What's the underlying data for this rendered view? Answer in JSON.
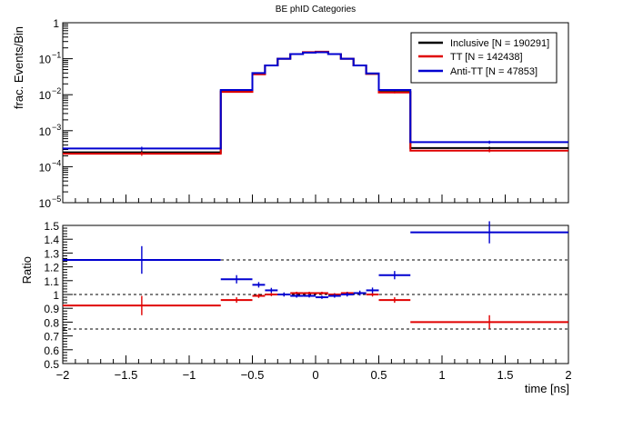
{
  "chart_data": {
    "type": "line",
    "title": "BE phID Categories",
    "x_edges": [
      -2,
      -0.75,
      -0.5,
      -0.4,
      -0.3,
      -0.2,
      -0.1,
      0,
      0.1,
      0.2,
      0.3,
      0.4,
      0.5,
      0.75,
      2
    ],
    "xlabel": "time [ns]",
    "xlim": [
      -2,
      2
    ],
    "x_ticks": [
      -2,
      -1.5,
      -1,
      -0.5,
      0,
      0.5,
      1,
      1.5,
      2
    ],
    "x_tick_labels": [
      "−2",
      "−1.5",
      "−1",
      "−0.5",
      "0",
      "0.5",
      "1",
      "1.5",
      "2"
    ],
    "top_panel": {
      "ylabel": "frac. Events/Bin",
      "yscale": "log",
      "ylim": [
        1e-05,
        1
      ],
      "y_ticks": [
        1e-05,
        0.0001,
        0.001,
        0.01,
        0.1,
        1
      ],
      "y_tick_labels": [
        {
          "base": "10",
          "exp": "−5"
        },
        {
          "base": "10",
          "exp": "−4"
        },
        {
          "base": "10",
          "exp": "−3"
        },
        {
          "base": "10",
          "exp": "−2"
        },
        {
          "base": "10",
          "exp": "−1"
        },
        {
          "base": "1",
          "exp": ""
        }
      ],
      "legend_position": "top-right",
      "series": [
        {
          "name": "Inclusive [N = 190291]",
          "color": "#000000",
          "values": [
            0.00025,
            0.0125,
            0.038,
            0.065,
            0.1,
            0.135,
            0.15,
            0.155,
            0.135,
            0.1,
            0.065,
            0.038,
            0.012,
            0.00033
          ],
          "errors": [
            3e-05,
            0.0006,
            0.001,
            0.0015,
            0.002,
            0.0025,
            0.003,
            0.003,
            0.0025,
            0.002,
            0.0015,
            0.001,
            0.0006,
            3e-05
          ]
        },
        {
          "name": "TT [N = 142438]",
          "color": "#e00000",
          "values": [
            0.00023,
            0.012,
            0.037,
            0.065,
            0.1,
            0.135,
            0.152,
            0.157,
            0.135,
            0.1,
            0.065,
            0.038,
            0.0115,
            0.00028
          ],
          "errors": [
            3e-05,
            0.0006,
            0.001,
            0.0015,
            0.002,
            0.0025,
            0.003,
            0.003,
            0.0025,
            0.002,
            0.0015,
            0.001,
            0.0006,
            3e-05
          ]
        },
        {
          "name": "Anti-TT [N = 47853]",
          "color": "#0000d0",
          "values": [
            0.00032,
            0.0135,
            0.04,
            0.065,
            0.1,
            0.135,
            0.148,
            0.151,
            0.135,
            0.1,
            0.065,
            0.039,
            0.0135,
            0.00048
          ],
          "errors": [
            4e-05,
            0.0008,
            0.0012,
            0.0018,
            0.0025,
            0.003,
            0.0035,
            0.0035,
            0.003,
            0.0025,
            0.0018,
            0.0012,
            0.0008,
            5e-05
          ]
        }
      ]
    },
    "bottom_panel": {
      "ylabel": "Ratio",
      "ylim": [
        0.5,
        1.5
      ],
      "y_ticks": [
        0.5,
        0.6,
        0.7,
        0.8,
        0.9,
        1,
        1.1,
        1.2,
        1.3,
        1.4,
        1.5
      ],
      "y_tick_labels": [
        "0.5",
        "0.6",
        "0.7",
        "0.8",
        "0.9",
        "1",
        "1.1",
        "1.2",
        "1.3",
        "1.4",
        "1.5"
      ],
      "reference_lines": [
        0.75,
        1,
        1.25
      ],
      "series": [
        {
          "name": "TT",
          "color": "#e00000",
          "values": [
            0.92,
            0.96,
            0.99,
            1.0,
            1.0,
            1.01,
            1.01,
            1.01,
            1.0,
            1.01,
            1.01,
            1.0,
            0.96,
            0.8
          ],
          "errors": [
            0.07,
            0.02,
            0.015,
            0.012,
            0.01,
            0.01,
            0.01,
            0.01,
            0.01,
            0.01,
            0.012,
            0.015,
            0.02,
            0.05
          ]
        },
        {
          "name": "Anti-TT",
          "color": "#0000d0",
          "values": [
            1.25,
            1.11,
            1.07,
            1.03,
            1.0,
            0.99,
            0.99,
            0.98,
            0.99,
            1.0,
            1.01,
            1.03,
            1.14,
            1.45
          ],
          "errors": [
            0.1,
            0.03,
            0.02,
            0.018,
            0.015,
            0.013,
            0.012,
            0.012,
            0.013,
            0.015,
            0.018,
            0.02,
            0.03,
            0.08
          ]
        }
      ]
    }
  }
}
